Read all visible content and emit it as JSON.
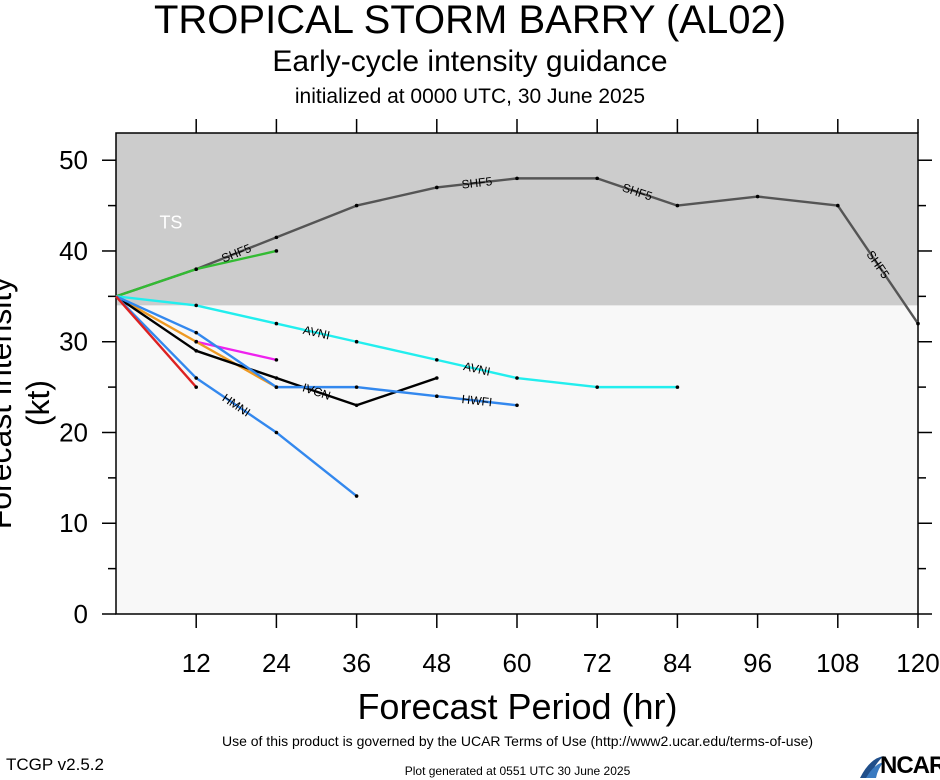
{
  "header": {
    "title": "TROPICAL STORM BARRY (AL02)",
    "subtitle": "Early-cycle intensity guidance",
    "init": "initialized at 0000 UTC, 30 June 2025"
  },
  "footer": {
    "terms": "Use of this product is governed by the UCAR Terms of Use (http://www2.ucar.edu/terms-of-use)",
    "version": "TCGP v2.5.2",
    "generated": "Plot generated at 0551 UTC   30 June 2025",
    "logo_text": "NCAR"
  },
  "chart_data": {
    "type": "line",
    "xlabel": "Forecast Period (hr)",
    "ylabel": "Forecast Intensity (kt)",
    "xlim": [
      0,
      120
    ],
    "ylim": [
      0,
      53
    ],
    "xticks": [
      12,
      24,
      36,
      48,
      60,
      72,
      84,
      96,
      108,
      120
    ],
    "yticks": [
      0,
      10,
      20,
      30,
      40,
      50
    ],
    "bands": [
      {
        "label": "TS",
        "from": 34,
        "to": 53,
        "color": "#cccccc"
      },
      {
        "label": "",
        "from": 0,
        "to": 34,
        "color": "#f8f8f8"
      }
    ],
    "series": [
      {
        "name": "SHF5",
        "color": "#555555",
        "x": [
          0,
          12,
          24,
          36,
          48,
          60,
          72,
          84,
          96,
          108,
          120
        ],
        "y": [
          35,
          38,
          41.5,
          45,
          47,
          48,
          48,
          45,
          46,
          45,
          32
        ]
      },
      {
        "name": "",
        "color": "#33bb33",
        "x": [
          0,
          12,
          24
        ],
        "y": [
          35,
          38,
          40
        ]
      },
      {
        "name": "AVNI",
        "color": "#22eeee",
        "x": [
          0,
          12,
          24,
          36,
          48,
          60,
          72,
          84
        ],
        "y": [
          35,
          34,
          32,
          30,
          28,
          26,
          25,
          25
        ]
      },
      {
        "name": "",
        "color": "#ee22ee",
        "x": [
          12,
          24
        ],
        "y": [
          30,
          28
        ]
      },
      {
        "name": "",
        "color": "#ee9922",
        "x": [
          0,
          12,
          24
        ],
        "y": [
          35,
          30,
          25
        ]
      },
      {
        "name": "IVCN",
        "color": "#000000",
        "x": [
          0,
          12,
          24,
          36,
          48
        ],
        "y": [
          35,
          29,
          26,
          23,
          26
        ]
      },
      {
        "name": "HWFI",
        "color": "#3388ee",
        "x": [
          0,
          12,
          24,
          36,
          48,
          60
        ],
        "y": [
          35,
          31,
          25,
          25,
          24,
          23
        ]
      },
      {
        "name": "HMNI",
        "color": "#3388ee",
        "x": [
          0,
          12,
          24,
          36
        ],
        "y": [
          35,
          26,
          20,
          13
        ]
      },
      {
        "name": "",
        "color": "#dd2222",
        "x": [
          0,
          12
        ],
        "y": [
          35,
          25
        ]
      }
    ],
    "labels": [
      {
        "text": "SHF5",
        "series": 0
      },
      {
        "text": "AVNI",
        "series": 2
      },
      {
        "text": "IVCN",
        "series": 5
      },
      {
        "text": "HWFI",
        "series": 6
      },
      {
        "text": "HMNI",
        "series": 7
      }
    ]
  }
}
